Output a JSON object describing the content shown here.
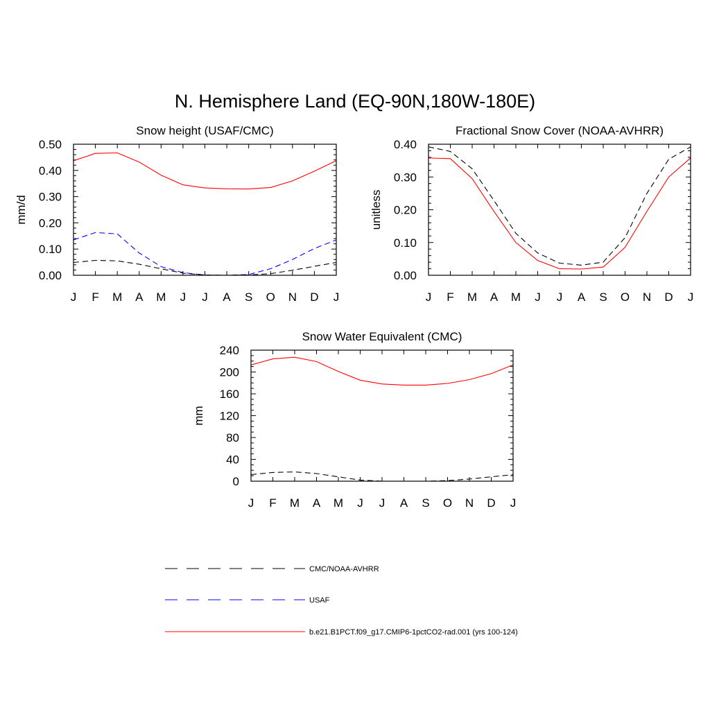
{
  "figure": {
    "title": "N. Hemisphere Land (EQ-90N,180W-180E)"
  },
  "style": {
    "obs_color": "#000000",
    "usaf_color": "#0000ff",
    "model_color": "#ff0000"
  },
  "legend": {
    "items": [
      {
        "label": "CMC/NOAA-AVHRR",
        "style": "dashed",
        "color": "#000000"
      },
      {
        "label": "USAF",
        "style": "dashed",
        "color": "#0000ff"
      },
      {
        "label": "b.e21.B1PCT.f09_g17.CMIP6-1pctCO2-rad.001 (yrs 100-124)",
        "style": "solid",
        "color": "#ff0000"
      }
    ]
  },
  "chart_data": [
    {
      "type": "line",
      "title": "Snow height (USAF/CMC)",
      "xlabel": "",
      "ylabel": "mm/d",
      "categories": [
        "J",
        "F",
        "M",
        "A",
        "M",
        "J",
        "J",
        "A",
        "S",
        "O",
        "N",
        "D",
        "J"
      ],
      "ylim": [
        0,
        0.5
      ],
      "yticks": [
        "0.00",
        "0.10",
        "0.20",
        "0.30",
        "0.40",
        "0.50"
      ],
      "grid": false,
      "series": [
        {
          "name": "b.e21.B1PCT.f09_g17.CMIP6-1pctCO2-rad.001 (yrs 100-124)",
          "style": "solid",
          "color": "#ff0000",
          "values": [
            0.437,
            0.465,
            0.467,
            0.432,
            0.382,
            0.345,
            0.333,
            0.33,
            0.329,
            0.335,
            0.36,
            0.397,
            0.437
          ]
        },
        {
          "name": "USAF",
          "style": "dashed",
          "color": "#0000ff",
          "values": [
            0.135,
            0.163,
            0.158,
            0.085,
            0.033,
            0.01,
            0.001,
            0.0,
            0.003,
            0.025,
            0.06,
            0.102,
            0.135
          ]
        },
        {
          "name": "CMC/NOAA-AVHRR",
          "style": "dashed",
          "color": "#000000",
          "values": [
            0.049,
            0.057,
            0.055,
            0.042,
            0.025,
            0.008,
            0.001,
            0.0,
            0.001,
            0.006,
            0.019,
            0.034,
            0.049
          ]
        }
      ]
    },
    {
      "type": "line",
      "title": "Fractional Snow Cover (NOAA-AVHRR)",
      "xlabel": "",
      "ylabel": "unitless",
      "categories": [
        "J",
        "F",
        "M",
        "A",
        "M",
        "J",
        "J",
        "A",
        "S",
        "O",
        "N",
        "D",
        "J"
      ],
      "ylim": [
        0,
        0.4
      ],
      "yticks": [
        "0.00",
        "0.10",
        "0.20",
        "0.30",
        "0.40"
      ],
      "grid": false,
      "series": [
        {
          "name": "b.e21.B1PCT.f09_g17.CMIP6-1pctCO2-rad.001 (yrs 100-124)",
          "style": "solid",
          "color": "#ff0000",
          "values": [
            0.358,
            0.356,
            0.295,
            0.195,
            0.1,
            0.045,
            0.02,
            0.019,
            0.025,
            0.085,
            0.195,
            0.3,
            0.358
          ]
        },
        {
          "name": "CMC/NOAA-AVHRR",
          "style": "dashed",
          "color": "#000000",
          "values": [
            0.392,
            0.378,
            0.325,
            0.228,
            0.128,
            0.068,
            0.037,
            0.031,
            0.04,
            0.115,
            0.25,
            0.354,
            0.392
          ]
        }
      ]
    },
    {
      "type": "line",
      "title": "Snow Water Equivalent (CMC)",
      "xlabel": "",
      "ylabel": "mm",
      "categories": [
        "J",
        "F",
        "M",
        "A",
        "M",
        "J",
        "J",
        "A",
        "S",
        "O",
        "N",
        "D",
        "J"
      ],
      "ylim": [
        0,
        240
      ],
      "yticks": [
        "0",
        "40",
        "80",
        "120",
        "160",
        "200",
        "240"
      ],
      "grid": false,
      "series": [
        {
          "name": "b.e21.B1PCT.f09_g17.CMIP6-1pctCO2-rad.001 (yrs 100-124)",
          "style": "solid",
          "color": "#ff0000",
          "values": [
            213,
            224,
            227,
            219,
            201,
            185,
            178,
            176,
            176,
            179,
            186,
            197,
            213
          ]
        },
        {
          "name": "CMC/NOAA-AVHRR",
          "style": "dashed",
          "color": "#000000",
          "values": [
            12,
            16,
            17,
            14,
            8,
            2,
            0,
            0,
            0,
            1,
            4,
            8,
            12
          ]
        }
      ]
    }
  ]
}
